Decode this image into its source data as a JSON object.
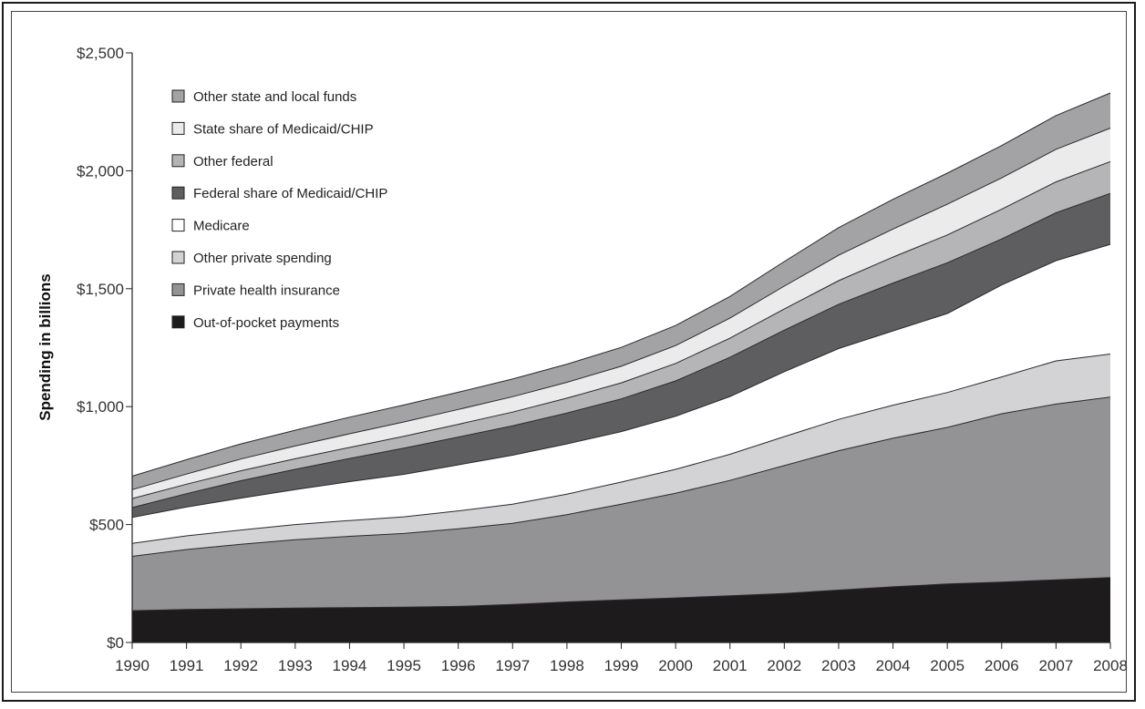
{
  "chart_data": {
    "type": "area",
    "stacked": true,
    "title": "",
    "xlabel": "",
    "ylabel": "Spending in billions",
    "ylim": [
      0,
      2500
    ],
    "y_ticks": [
      "$0",
      "$500",
      "$1,000",
      "$1,500",
      "$2,000",
      "$2,500"
    ],
    "y_tick_values": [
      0,
      500,
      1000,
      1500,
      2000,
      2500
    ],
    "x": [
      1990,
      1991,
      1992,
      1993,
      1994,
      1995,
      1996,
      1997,
      1998,
      1999,
      2000,
      2001,
      2002,
      2003,
      2004,
      2005,
      2006,
      2007,
      2008
    ],
    "x_tick_labels": [
      "1990",
      "1991",
      "1992",
      "1993",
      "1994",
      "1995",
      "1996",
      "1997",
      "1998",
      "1999",
      "2000",
      "2001",
      "2002",
      "2003",
      "2004",
      "2005",
      "2006",
      "2007",
      "2008"
    ],
    "grid": false,
    "legend_position": "top-left",
    "series": [
      {
        "name": "Out-of-pocket payments",
        "color": "#1e1b1c",
        "values": [
          135,
          140,
          143,
          146,
          148,
          150,
          153,
          161,
          172,
          181,
          189,
          198,
          208,
          222,
          236,
          248,
          256,
          266,
          275
        ]
      },
      {
        "name": "Private health insurance",
        "color": "#939395",
        "values": [
          230,
          254,
          273,
          290,
          302,
          312,
          329,
          344,
          370,
          405,
          444,
          489,
          542,
          591,
          630,
          664,
          714,
          745,
          765
        ]
      },
      {
        "name": "Other private spending",
        "color": "#d3d3d5",
        "values": [
          55,
          58,
          61,
          64,
          67,
          71,
          76,
          81,
          87,
          94,
          101,
          111,
          123,
          133,
          140,
          148,
          156,
          183,
          183
        ]
      },
      {
        "name": "Medicare",
        "color": "#ffffff",
        "values": [
          110,
          122,
          135,
          148,
          165,
          180,
          195,
          208,
          213,
          214,
          225,
          245,
          275,
          300,
          315,
          335,
          390,
          425,
          465
        ]
      },
      {
        "name": "Federal share of Medicaid/CHIP",
        "color": "#5e5e60",
        "values": [
          42,
          57,
          74,
          86,
          98,
          111,
          118,
          125,
          131,
          139,
          150,
          166,
          176,
          188,
          203,
          215,
          195,
          203,
          216
        ]
      },
      {
        "name": "Other federal",
        "color": "#b5b5b7",
        "values": [
          38,
          40,
          42,
          45,
          47,
          50,
          54,
          58,
          63,
          68,
          74,
          81,
          90,
          100,
          110,
          118,
          126,
          131,
          135
        ]
      },
      {
        "name": "State share of Medicaid/CHIP",
        "color": "#ebebec",
        "values": [
          38,
          43,
          50,
          54,
          58,
          61,
          63,
          65,
          67,
          70,
          76,
          85,
          97,
          108,
          119,
          130,
          133,
          138,
          142
        ]
      },
      {
        "name": "Other state and local funds",
        "color": "#a3a3a5",
        "values": [
          57,
          61,
          64,
          67,
          70,
          72,
          73,
          75,
          77,
          80,
          85,
          92,
          104,
          117,
          126,
          132,
          137,
          143,
          149
        ]
      }
    ],
    "legend_order": [
      "Other state and local funds",
      "State share of Medicaid/CHIP",
      "Other federal",
      "Federal share of Medicaid/CHIP",
      "Medicare",
      "Other private spending",
      "Private health insurance",
      "Out-of-pocket payments"
    ]
  }
}
